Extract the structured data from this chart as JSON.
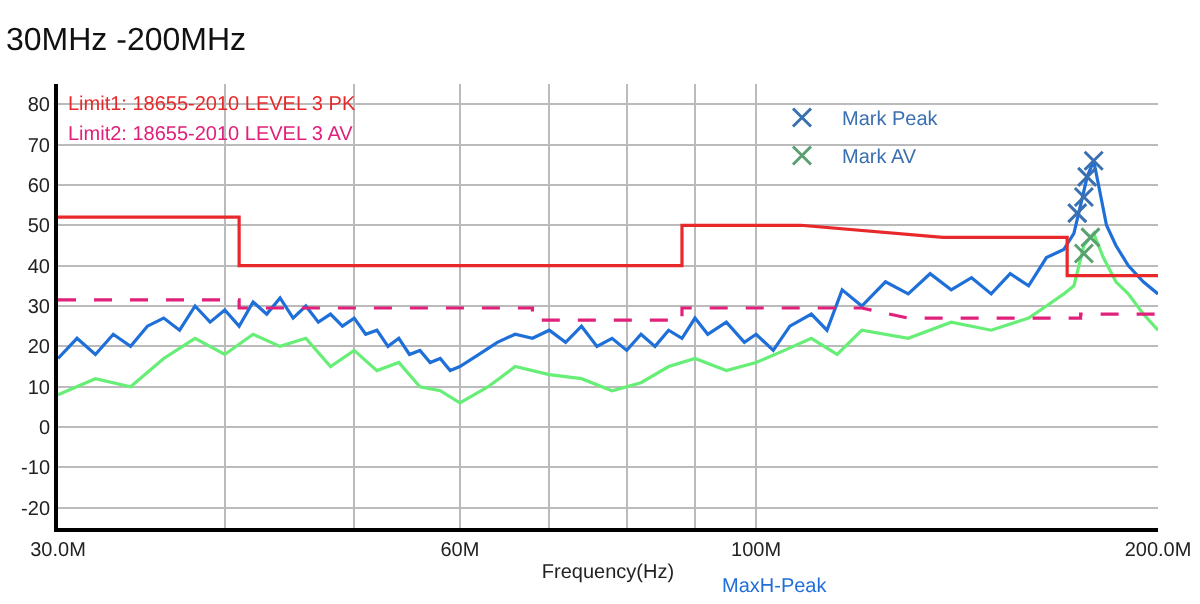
{
  "chart_data": {
    "type": "line",
    "title": "30MHz -200MHz",
    "xlabel": "Frequency(Hz)",
    "log": "x",
    "grid": true,
    "legend": "top right",
    "xlim": [
      30,
      200
    ],
    "xticks": [
      {
        "value": 30,
        "label": "30.0M"
      },
      {
        "value": 40,
        "label": null
      },
      {
        "value": 50,
        "label": null
      },
      {
        "value": 60,
        "label": "60M"
      },
      {
        "value": 70,
        "label": null
      },
      {
        "value": 80,
        "label": null
      },
      {
        "value": 90,
        "label": null
      },
      {
        "value": 100,
        "label": "100M"
      },
      {
        "value": 200,
        "label": "200.0M"
      }
    ],
    "ylim": [
      -25,
      85
    ],
    "yticks": [
      -20,
      -10,
      0,
      10,
      20,
      30,
      40,
      50,
      60,
      70,
      80
    ],
    "series": [
      {
        "name": "MaxH-Peak",
        "color": "#1f6fd8",
        "x": [
          30,
          31,
          32,
          33,
          34,
          35,
          36,
          37,
          38,
          39,
          40,
          41,
          42,
          43,
          44,
          45,
          46,
          47,
          48,
          49,
          50,
          51,
          52,
          53,
          54,
          55,
          56,
          57,
          58,
          59,
          60,
          62,
          64,
          66,
          68,
          70,
          72,
          74,
          76,
          78,
          80,
          82,
          84,
          86,
          88,
          90,
          92,
          95,
          98,
          100,
          103,
          106,
          110,
          113,
          116,
          120,
          125,
          130,
          135,
          140,
          145,
          150,
          155,
          160,
          165,
          170,
          173,
          175,
          177,
          179,
          181,
          183,
          186,
          190,
          195,
          200
        ],
        "values": [
          17,
          22,
          18,
          23,
          20,
          25,
          27,
          24,
          30,
          26,
          29,
          25,
          31,
          28,
          32,
          27,
          30,
          26,
          28,
          25,
          27,
          23,
          24,
          20,
          22,
          18,
          19,
          16,
          17,
          14,
          15,
          18,
          21,
          23,
          22,
          24,
          21,
          25,
          20,
          22,
          19,
          23,
          20,
          24,
          22,
          27,
          23,
          26,
          21,
          23,
          19,
          25,
          28,
          24,
          34,
          30,
          36,
          33,
          38,
          34,
          37,
          33,
          38,
          35,
          42,
          44,
          48,
          55,
          62,
          66,
          58,
          50,
          45,
          40,
          36,
          33
        ]
      },
      {
        "color": "#66ee77",
        "x": [
          30,
          32,
          34,
          36,
          38,
          40,
          42,
          44,
          46,
          48,
          50,
          52,
          54,
          56,
          58,
          60,
          63,
          66,
          70,
          74,
          78,
          82,
          86,
          90,
          95,
          100,
          105,
          110,
          115,
          120,
          130,
          140,
          150,
          160,
          165,
          170,
          173,
          176,
          179,
          182,
          186,
          190,
          195,
          200
        ],
        "values": [
          8,
          12,
          10,
          17,
          22,
          18,
          23,
          20,
          22,
          15,
          19,
          14,
          16,
          10,
          9,
          6,
          10,
          15,
          13,
          12,
          9,
          11,
          15,
          17,
          14,
          16,
          19,
          22,
          18,
          24,
          22,
          26,
          24,
          27,
          30,
          33,
          35,
          45,
          48,
          42,
          36,
          33,
          28,
          24
        ]
      },
      {
        "name": "Limit1: 18655-2010 LEVEL 3 PK",
        "color": "#e8282a",
        "x": [
          30,
          41,
          41,
          88,
          88,
          108,
          138,
          171,
          171,
          200
        ],
        "values": [
          52,
          52,
          40,
          40,
          50,
          50,
          47,
          47,
          37.5,
          37.5
        ]
      },
      {
        "name": "Limit2: 18655-2010 LEVEL 3 AV",
        "line_style": "dashed",
        "color": "#e0207a",
        "x": [
          30,
          41,
          41,
          68,
          68,
          88,
          88,
          120,
          130,
          175,
          175,
          200
        ],
        "values": [
          31.5,
          31.5,
          29.5,
          29.5,
          26.5,
          26.5,
          29.5,
          29.5,
          27,
          27,
          28,
          28
        ]
      },
      {
        "name": "Mark Peak",
        "type": "scatter",
        "marker": "cross",
        "color": "#3a6fb0",
        "x": [
          174,
          176,
          177,
          179
        ],
        "values": [
          53,
          57,
          62,
          66
        ]
      },
      {
        "name": "Mark AV",
        "type": "scatter",
        "marker": "cross",
        "color": "#5aa070",
        "x": [
          176,
          178
        ],
        "values": [
          43,
          47
        ]
      }
    ]
  }
}
